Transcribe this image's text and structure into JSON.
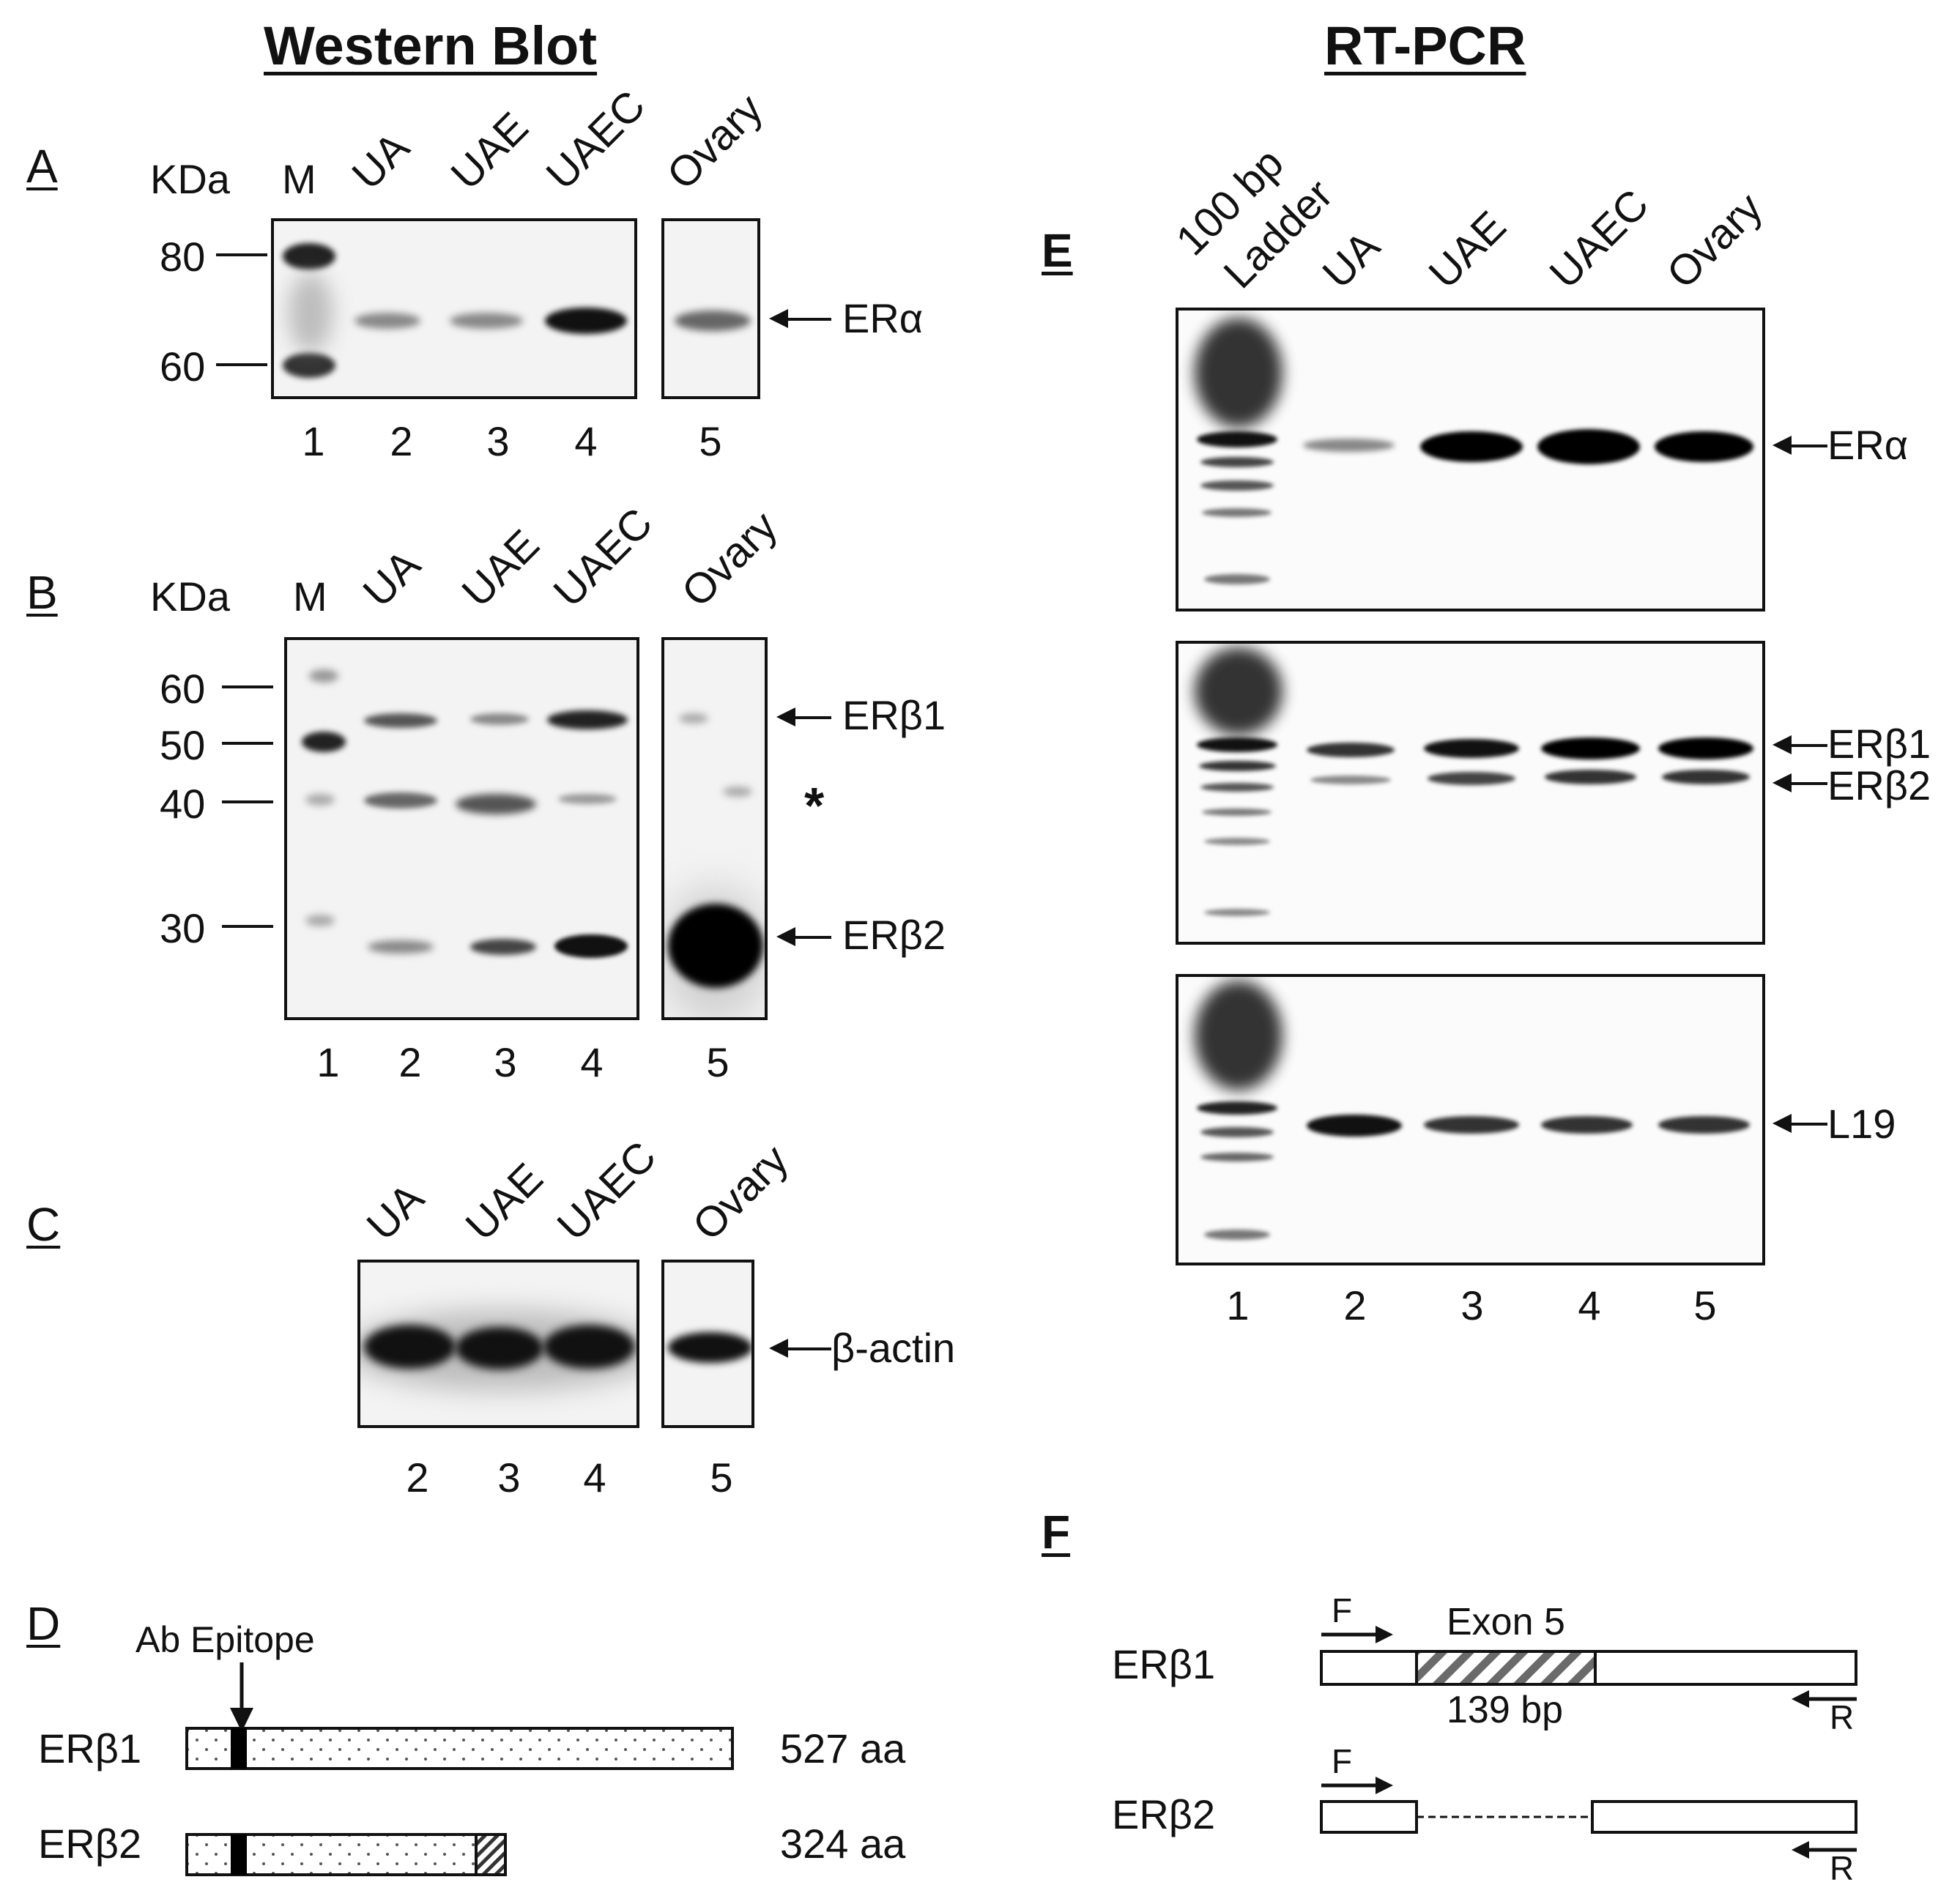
{
  "western_title": "Western Blot",
  "rtpcr_title": "RT-PCR",
  "panelA": {
    "label": "A",
    "kda_label": "KDa",
    "marker_label": "M",
    "lanes": [
      "UA",
      "UAE",
      "UAEC",
      "Ovary"
    ],
    "mw_markers": [
      "80",
      "60"
    ],
    "band_label": "ERα",
    "lane_numbers": [
      "1",
      "2",
      "3",
      "4",
      "5"
    ]
  },
  "panelB": {
    "label": "B",
    "kda_label": "KDa",
    "marker_label": "M",
    "lanes": [
      "UA",
      "UAE",
      "UAEC",
      "Ovary"
    ],
    "mw_markers": [
      "60",
      "50",
      "40",
      "30"
    ],
    "band_labels": [
      "ERβ1",
      "*",
      "ERβ2"
    ],
    "lane_numbers": [
      "1",
      "2",
      "3",
      "4",
      "5"
    ]
  },
  "panelC": {
    "label": "C",
    "lanes": [
      "UA",
      "UAE",
      "UAEC",
      "Ovary"
    ],
    "band_label": "β-actin",
    "lane_numbers": [
      "2",
      "3",
      "4",
      "5"
    ]
  },
  "panelD": {
    "label": "D",
    "epitope_label": "Ab Epitope",
    "rows": [
      {
        "name": "ERβ1",
        "length": "527 aa"
      },
      {
        "name": "ERβ2",
        "length": "324 aa"
      }
    ]
  },
  "panelE": {
    "label": "E",
    "ladder_label_1": "100 bp",
    "ladder_label_2": "Ladder",
    "lanes": [
      "UA",
      "UAE",
      "UAEC",
      "Ovary"
    ],
    "gel1_label": "ERα",
    "gel2_labels": [
      "ERβ1",
      "ERβ2"
    ],
    "gel3_label": "L19",
    "lane_numbers": [
      "1",
      "2",
      "3",
      "4",
      "5"
    ]
  },
  "panelF": {
    "label": "F",
    "exon_label": "Exon 5",
    "bp_label": "139 bp",
    "rows": [
      {
        "name": "ERβ1",
        "forward": "F",
        "reverse": "R"
      },
      {
        "name": "ERβ2",
        "forward": "F",
        "reverse": "R"
      }
    ]
  }
}
